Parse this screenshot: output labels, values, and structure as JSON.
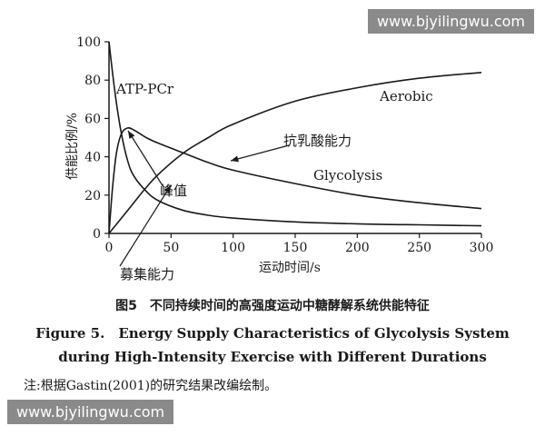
{
  "watermarks": [
    "www.bjyilingwu.com",
    "www.bjyilingwu.com"
  ],
  "caption": {
    "zh": "图5　不同持续时间的高强度运动中糖酵解系统供能特征",
    "en_line1": "Figure 5.　Energy Supply Characteristics of Glycolysis System",
    "en_line2": "during High-Intensity Exercise with Different Durations",
    "note": "注:根据Gastin(2001)的研究结果改编绘制。"
  },
  "chart_data": {
    "type": "line",
    "title": "",
    "xlabel": "运动时间/s",
    "ylabel": "供能比例/%",
    "xlim": [
      0,
      300
    ],
    "ylim": [
      0,
      100
    ],
    "xticks": [
      0,
      50,
      100,
      150,
      200,
      250,
      300
    ],
    "yticks": [
      0,
      20,
      40,
      60,
      80,
      100
    ],
    "grid": false,
    "series": [
      {
        "name": "ATP-PCr",
        "x": [
          0,
          3,
          6,
          10,
          15,
          20,
          30,
          40,
          60,
          80,
          100,
          150,
          200,
          250,
          300
        ],
        "y": [
          100,
          83,
          68,
          52,
          38,
          30,
          22,
          17,
          12,
          9.5,
          8,
          6,
          5,
          4.5,
          4
        ]
      },
      {
        "name": "Glycolysis",
        "x": [
          0,
          3,
          6,
          10,
          15,
          20,
          30,
          40,
          60,
          80,
          100,
          150,
          200,
          250,
          300
        ],
        "y": [
          0,
          25,
          42,
          52,
          55,
          54,
          50,
          47,
          42,
          37,
          33,
          26,
          20,
          16,
          13
        ]
      },
      {
        "name": "Aerobic",
        "x": [
          0,
          10,
          20,
          30,
          40,
          60,
          80,
          100,
          150,
          200,
          250,
          300
        ],
        "y": [
          0,
          8,
          16,
          24,
          31,
          42,
          50,
          57,
          69,
          76,
          81,
          84
        ]
      }
    ],
    "annotations": [
      {
        "text": "抗乳酸能力"
      },
      {
        "text": "峰值"
      },
      {
        "text": "募集能力"
      }
    ]
  }
}
